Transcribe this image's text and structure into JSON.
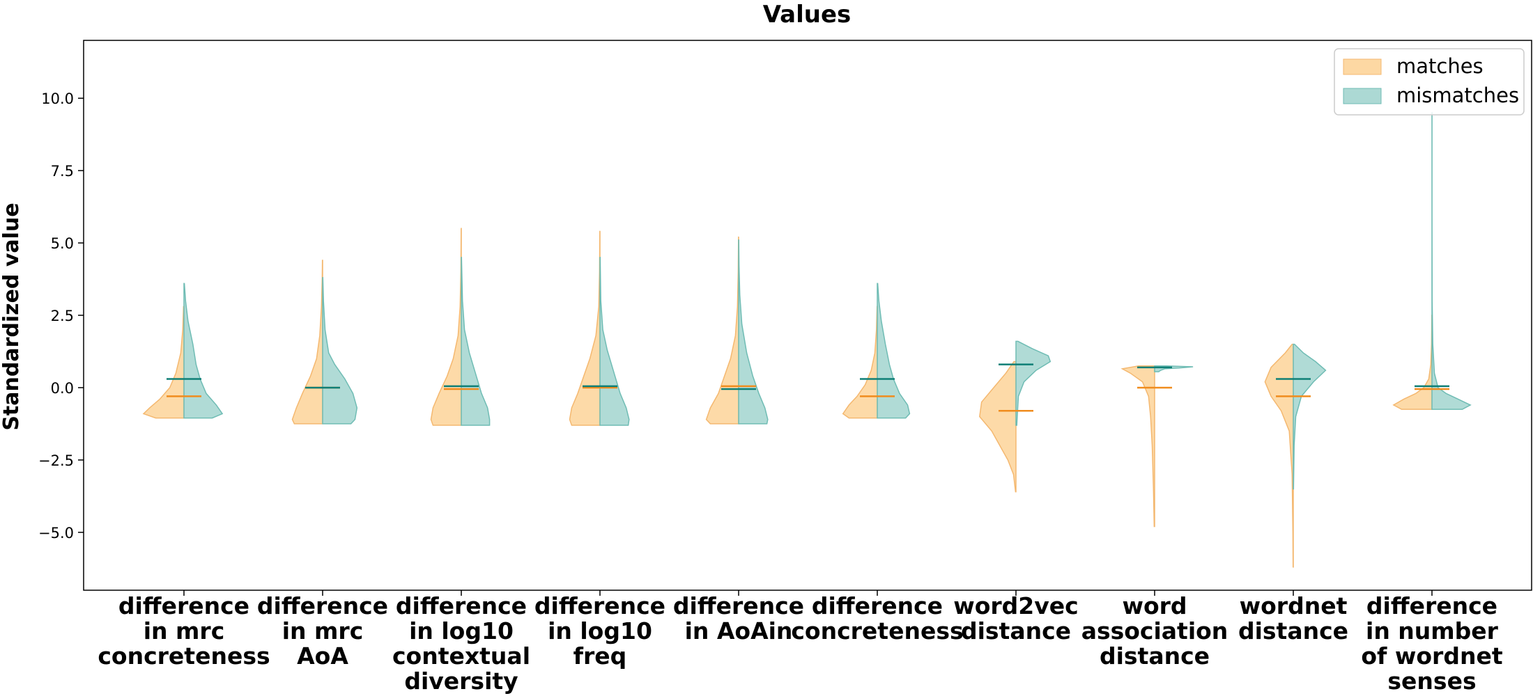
{
  "chart_data": {
    "type": "violin",
    "title": "Values",
    "xlabel": "",
    "ylabel": "Standardized value",
    "ylim": [
      -7,
      12
    ],
    "yticks": [
      {
        "value": 10.0,
        "label": "10.0"
      },
      {
        "value": 7.5,
        "label": "7.5"
      },
      {
        "value": 5.0,
        "label": "5.0"
      },
      {
        "value": 2.5,
        "label": "2.5"
      },
      {
        "value": 0.0,
        "label": "0.0"
      },
      {
        "value": -2.5,
        "label": "−2.5"
      },
      {
        "value": -5.0,
        "label": "−5.0"
      }
    ],
    "legend_position": "top-right",
    "colors": {
      "matches_fill": "#fdd8a3",
      "matches_stroke": "#f4b870",
      "matches_median": "#f08c1e",
      "mismatches_fill": "#acd9d4",
      "mismatches_stroke": "#6fbcb4",
      "mismatches_median": "#0e7f76"
    },
    "series": [
      {
        "name": "matches",
        "side": "left"
      },
      {
        "name": "mismatches",
        "side": "right"
      }
    ],
    "categories": [
      {
        "label": [
          "difference",
          "in mrc",
          "concreteness"
        ],
        "matches": {
          "median": -0.3,
          "profile": [
            [
              -1.05,
              0.7
            ],
            [
              -0.9,
              1.0
            ],
            [
              -0.7,
              0.85
            ],
            [
              -0.4,
              0.6
            ],
            [
              0.0,
              0.35
            ],
            [
              0.5,
              0.2
            ],
            [
              1.2,
              0.08
            ],
            [
              2.0,
              0.03
            ],
            [
              2.8,
              0.01
            ]
          ]
        },
        "mismatches": {
          "median": 0.3,
          "profile": [
            [
              -1.05,
              0.7
            ],
            [
              -0.9,
              0.95
            ],
            [
              -0.6,
              0.8
            ],
            [
              -0.2,
              0.55
            ],
            [
              0.3,
              0.4
            ],
            [
              0.8,
              0.3
            ],
            [
              1.5,
              0.22
            ],
            [
              2.3,
              0.1
            ],
            [
              3.0,
              0.04
            ],
            [
              3.6,
              0.01
            ]
          ]
        }
      },
      {
        "label": [
          "difference",
          "in mrc",
          "AoA"
        ],
        "matches": {
          "median": 0.0,
          "profile": [
            [
              -1.25,
              0.7
            ],
            [
              -1.1,
              0.75
            ],
            [
              -0.7,
              0.65
            ],
            [
              -0.2,
              0.5
            ],
            [
              0.4,
              0.3
            ],
            [
              1.0,
              0.15
            ],
            [
              1.8,
              0.07
            ],
            [
              2.8,
              0.03
            ],
            [
              3.8,
              0.01
            ],
            [
              4.4,
              0.005
            ]
          ]
        },
        "mismatches": {
          "median": 0.0,
          "profile": [
            [
              -1.25,
              0.7
            ],
            [
              -1.1,
              0.8
            ],
            [
              -0.7,
              0.85
            ],
            [
              -0.2,
              0.75
            ],
            [
              0.3,
              0.55
            ],
            [
              0.8,
              0.3
            ],
            [
              1.2,
              0.15
            ],
            [
              2.0,
              0.06
            ],
            [
              3.0,
              0.02
            ],
            [
              3.8,
              0.005
            ]
          ]
        }
      },
      {
        "label": [
          "difference",
          "in log10",
          "contextual",
          "diversity"
        ],
        "matches": {
          "median": -0.05,
          "profile": [
            [
              -1.3,
              0.7
            ],
            [
              -1.1,
              0.75
            ],
            [
              -0.7,
              0.7
            ],
            [
              -0.2,
              0.55
            ],
            [
              0.4,
              0.35
            ],
            [
              1.0,
              0.2
            ],
            [
              1.8,
              0.08
            ],
            [
              2.8,
              0.03
            ],
            [
              4.0,
              0.01
            ],
            [
              5.5,
              0.003
            ]
          ]
        },
        "mismatches": {
          "median": 0.05,
          "profile": [
            [
              -1.3,
              0.7
            ],
            [
              -1.1,
              0.7
            ],
            [
              -0.7,
              0.65
            ],
            [
              -0.2,
              0.5
            ],
            [
              0.5,
              0.35
            ],
            [
              1.2,
              0.2
            ],
            [
              2.0,
              0.08
            ],
            [
              3.0,
              0.03
            ],
            [
              4.5,
              0.006
            ]
          ]
        }
      },
      {
        "label": [
          "difference",
          "in log10",
          "freq"
        ],
        "matches": {
          "median": 0.0,
          "profile": [
            [
              -1.3,
              0.7
            ],
            [
              -1.1,
              0.75
            ],
            [
              -0.7,
              0.7
            ],
            [
              -0.2,
              0.55
            ],
            [
              0.4,
              0.4
            ],
            [
              1.0,
              0.25
            ],
            [
              1.8,
              0.1
            ],
            [
              2.8,
              0.03
            ],
            [
              4.0,
              0.01
            ],
            [
              5.4,
              0.003
            ]
          ]
        },
        "mismatches": {
          "median": 0.05,
          "profile": [
            [
              -1.3,
              0.7
            ],
            [
              -1.1,
              0.72
            ],
            [
              -0.7,
              0.65
            ],
            [
              -0.2,
              0.5
            ],
            [
              0.5,
              0.35
            ],
            [
              1.3,
              0.18
            ],
            [
              2.0,
              0.07
            ],
            [
              3.0,
              0.02
            ],
            [
              4.5,
              0.005
            ]
          ]
        }
      },
      {
        "label": [
          "difference",
          "in AoAin"
        ],
        "matches": {
          "median": 0.05,
          "profile": [
            [
              -1.25,
              0.7
            ],
            [
              -1.1,
              0.8
            ],
            [
              -0.7,
              0.7
            ],
            [
              -0.2,
              0.5
            ],
            [
              0.4,
              0.35
            ],
            [
              1.0,
              0.2
            ],
            [
              1.8,
              0.08
            ],
            [
              2.8,
              0.03
            ],
            [
              4.0,
              0.01
            ],
            [
              5.2,
              0.004
            ]
          ]
        },
        "mismatches": {
          "median": -0.05,
          "profile": [
            [
              -1.25,
              0.7
            ],
            [
              -1.1,
              0.72
            ],
            [
              -0.7,
              0.65
            ],
            [
              -0.2,
              0.5
            ],
            [
              0.4,
              0.35
            ],
            [
              1.2,
              0.2
            ],
            [
              2.2,
              0.08
            ],
            [
              3.2,
              0.03
            ],
            [
              4.2,
              0.01
            ],
            [
              5.1,
              0.003
            ]
          ]
        }
      },
      {
        "label": [
          "difference",
          "concreteness"
        ],
        "matches": {
          "median": -0.3,
          "profile": [
            [
              -1.05,
              0.7
            ],
            [
              -0.9,
              0.85
            ],
            [
              -0.6,
              0.7
            ],
            [
              -0.3,
              0.5
            ],
            [
              0.1,
              0.3
            ],
            [
              0.6,
              0.15
            ],
            [
              1.2,
              0.06
            ],
            [
              2.0,
              0.02
            ],
            [
              2.8,
              0.005
            ]
          ]
        },
        "mismatches": {
          "median": 0.3,
          "profile": [
            [
              -1.05,
              0.7
            ],
            [
              -0.9,
              0.8
            ],
            [
              -0.6,
              0.75
            ],
            [
              -0.2,
              0.55
            ],
            [
              0.3,
              0.4
            ],
            [
              0.8,
              0.3
            ],
            [
              1.5,
              0.2
            ],
            [
              2.3,
              0.1
            ],
            [
              3.0,
              0.04
            ],
            [
              3.6,
              0.01
            ]
          ]
        }
      },
      {
        "label": [
          "word2vec",
          "distance"
        ],
        "matches": {
          "median": -0.8,
          "profile": [
            [
              -3.6,
              0.01
            ],
            [
              -3.0,
              0.06
            ],
            [
              -2.5,
              0.2
            ],
            [
              -2.0,
              0.4
            ],
            [
              -1.5,
              0.6
            ],
            [
              -1.0,
              0.9
            ],
            [
              -0.5,
              0.85
            ],
            [
              0.0,
              0.55
            ],
            [
              0.5,
              0.25
            ],
            [
              0.9,
              0.05
            ]
          ]
        },
        "mismatches": {
          "median": 0.8,
          "profile": [
            [
              -1.3,
              0.02
            ],
            [
              -0.8,
              0.04
            ],
            [
              -0.3,
              0.06
            ],
            [
              0.2,
              0.2
            ],
            [
              0.6,
              0.5
            ],
            [
              0.9,
              0.85
            ],
            [
              1.1,
              0.8
            ],
            [
              1.35,
              0.4
            ],
            [
              1.6,
              0.05
            ]
          ]
        }
      },
      {
        "label": [
          "word",
          "association",
          "distance"
        ],
        "matches": {
          "median": 0.0,
          "profile": [
            [
              -4.8,
              0.01
            ],
            [
              -3.5,
              0.03
            ],
            [
              -2.0,
              0.06
            ],
            [
              -1.0,
              0.1
            ],
            [
              -0.3,
              0.15
            ],
            [
              0.2,
              0.3
            ],
            [
              0.5,
              0.6
            ],
            [
              0.65,
              0.8
            ],
            [
              0.75,
              0.4
            ]
          ]
        },
        "mismatches": {
          "median": 0.7,
          "profile": [
            [
              0.55,
              0.1
            ],
            [
              0.6,
              0.15
            ],
            [
              0.65,
              0.25
            ],
            [
              0.68,
              0.6
            ],
            [
              0.72,
              0.95
            ],
            [
              0.75,
              0.3
            ]
          ]
        }
      },
      {
        "label": [
          "wordnet",
          "distance"
        ],
        "matches": {
          "median": -0.3,
          "profile": [
            [
              -6.2,
              0.005
            ],
            [
              -5.0,
              0.01
            ],
            [
              -3.0,
              0.03
            ],
            [
              -1.5,
              0.1
            ],
            [
              -0.8,
              0.3
            ],
            [
              -0.3,
              0.55
            ],
            [
              0.2,
              0.7
            ],
            [
              0.7,
              0.55
            ],
            [
              1.2,
              0.2
            ],
            [
              1.5,
              0.03
            ]
          ]
        },
        "mismatches": {
          "median": 0.3,
          "profile": [
            [
              -3.5,
              0.005
            ],
            [
              -2.0,
              0.02
            ],
            [
              -1.0,
              0.06
            ],
            [
              -0.3,
              0.2
            ],
            [
              0.2,
              0.5
            ],
            [
              0.6,
              0.8
            ],
            [
              0.9,
              0.55
            ],
            [
              1.2,
              0.25
            ],
            [
              1.5,
              0.03
            ]
          ]
        }
      },
      {
        "label": [
          "difference",
          "in number",
          "of wordnet",
          "senses"
        ],
        "matches": {
          "median": -0.05,
          "profile": [
            [
              -0.75,
              0.75
            ],
            [
              -0.6,
              0.95
            ],
            [
              -0.4,
              0.7
            ],
            [
              -0.2,
              0.4
            ],
            [
              0.0,
              0.2
            ],
            [
              0.3,
              0.08
            ],
            [
              0.8,
              0.03
            ],
            [
              1.5,
              0.01
            ],
            [
              2.5,
              0.003
            ]
          ]
        },
        "mismatches": {
          "median": 0.05,
          "profile": [
            [
              -0.75,
              0.75
            ],
            [
              -0.6,
              0.95
            ],
            [
              -0.4,
              0.65
            ],
            [
              -0.2,
              0.35
            ],
            [
              0.0,
              0.15
            ],
            [
              0.5,
              0.06
            ],
            [
              1.5,
              0.02
            ],
            [
              3.0,
              0.006
            ],
            [
              6.0,
              0.002
            ],
            [
              9.5,
              0.001
            ]
          ]
        }
      }
    ]
  }
}
